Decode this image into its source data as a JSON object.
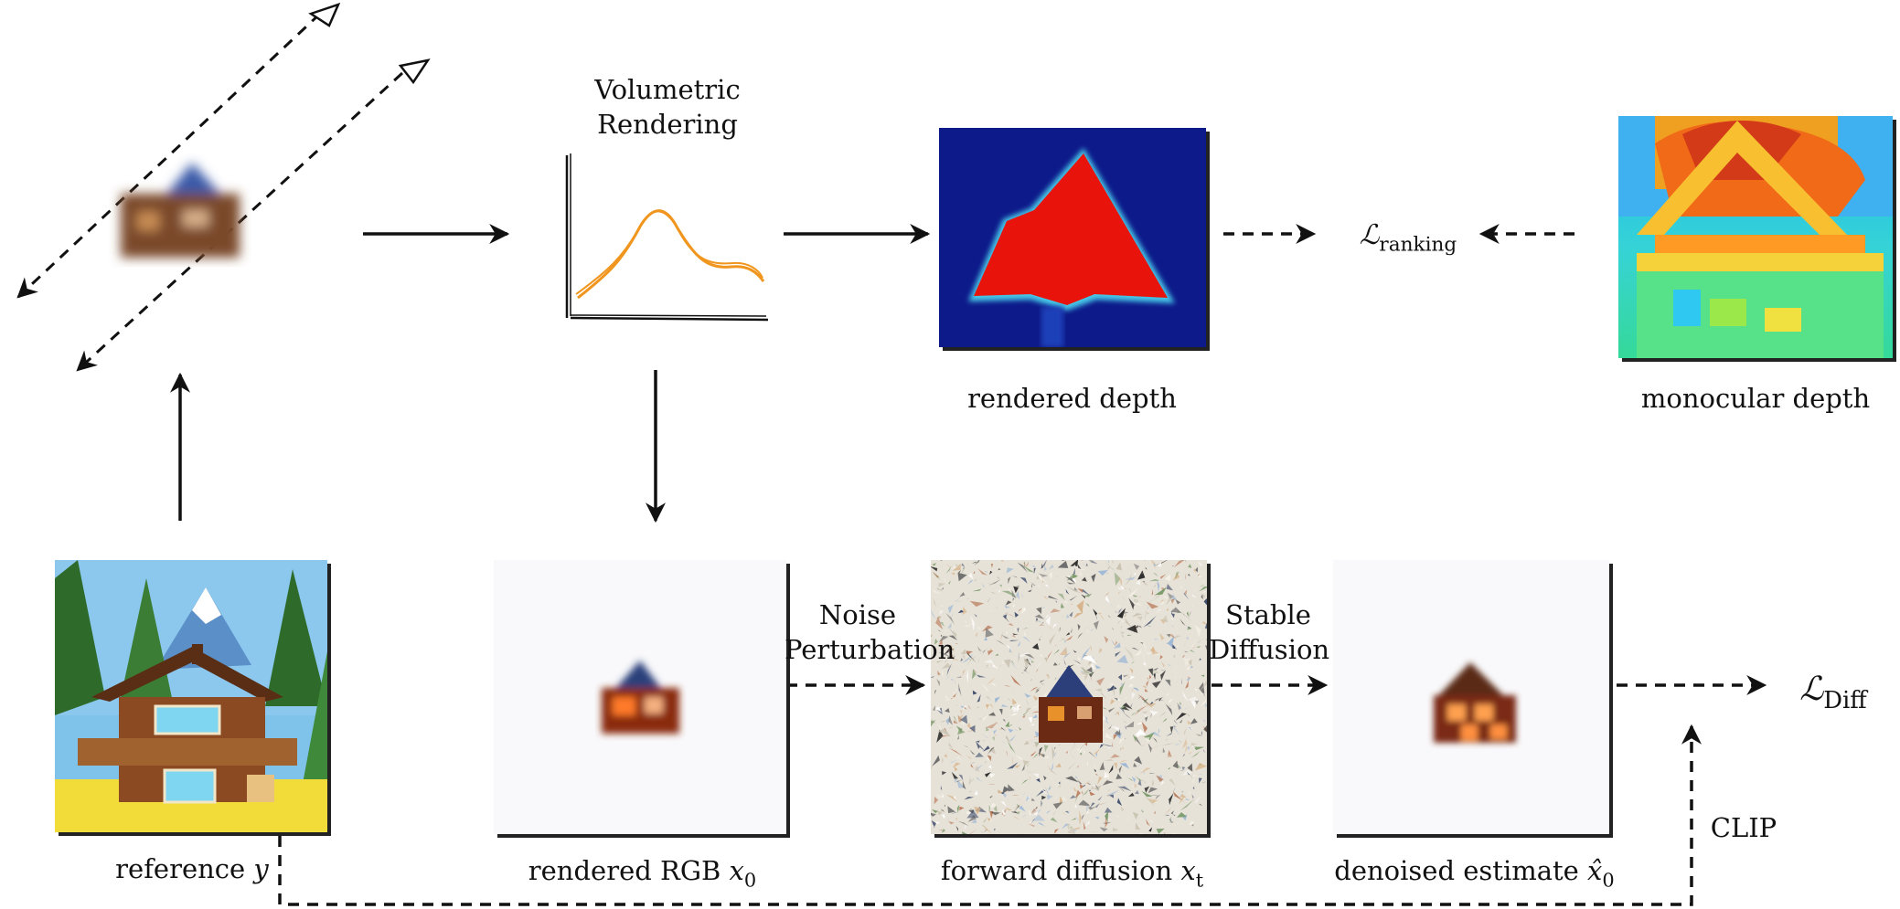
{
  "labels": {
    "volumetric": "Volumetric\nRendering",
    "rendered_depth": "rendered depth",
    "monocular_depth": "monocular depth",
    "loss_ranking_symbol": "ℒ",
    "loss_ranking_sub": "ranking",
    "loss_diff_symbol": "ℒ",
    "loss_diff_sub": "Diff",
    "noise": "Noise\nPerturbation",
    "stable": "Stable\nDiffusion",
    "clip": "CLIP",
    "reference_text": "reference ",
    "reference_var": "y",
    "rendered_rgb_text": "rendered RGB ",
    "rendered_rgb_var": "x",
    "rendered_rgb_sub": "0",
    "forward_text": "forward diffusion ",
    "forward_var": "x",
    "forward_sub": "t",
    "denoised_text": "denoised estimate ",
    "denoised_var": "x̂",
    "denoised_sub": "0"
  },
  "colors": {
    "depth_bg": "#0d1a8a",
    "depth_red": "#e8140c",
    "curve": "#f0961e",
    "sky": "#7fc3ea",
    "grass": "#f2dc3a",
    "tree": "#2e6b2a",
    "wood": "#8b4a22"
  }
}
